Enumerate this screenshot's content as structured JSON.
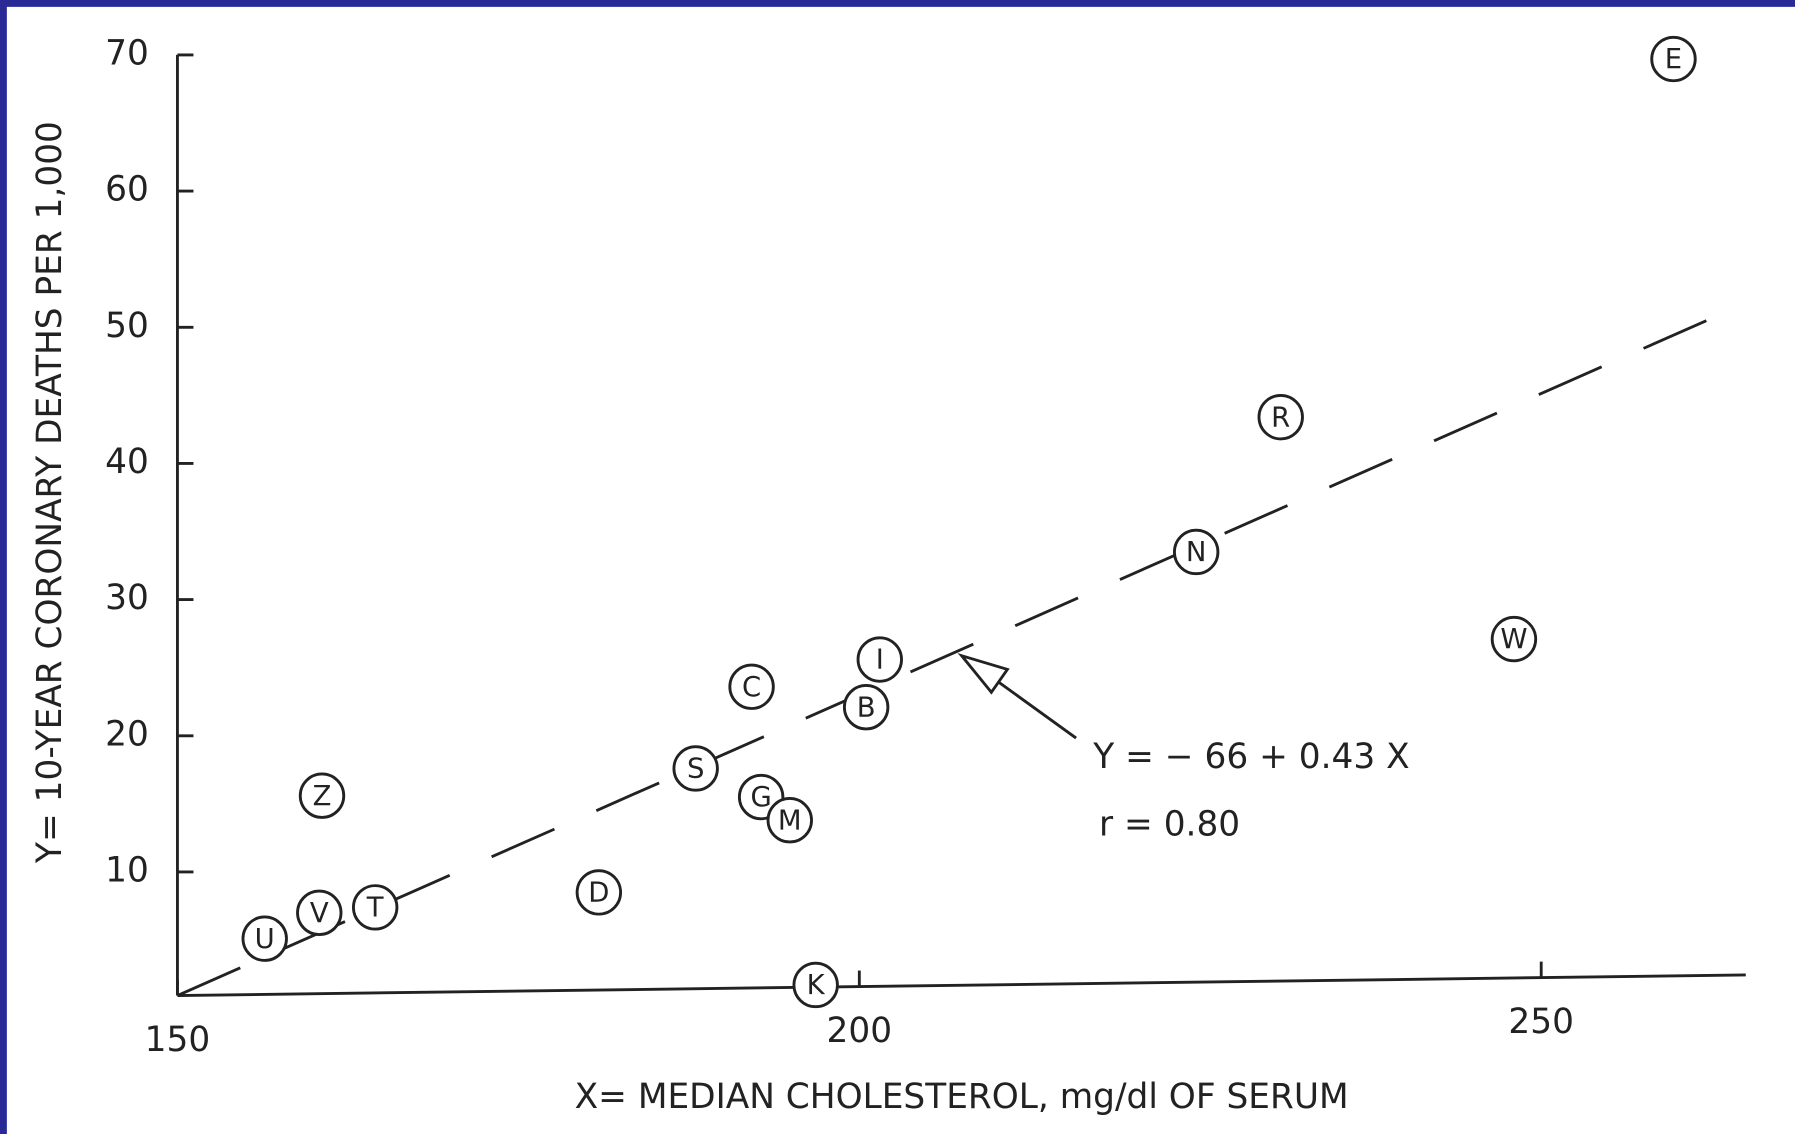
{
  "chart_data": {
    "type": "scatter",
    "x_label": "X= MEDIAN CHOLESTEROL, mg/dl OF SERUM",
    "y_label": "Y= 10-YEAR CORONARY DEATHS PER 1,000",
    "annotations": [
      "Y = − 66 + 0.43 X",
      "r =   0.80"
    ],
    "point_labels": [
      "E",
      "R",
      "N",
      "W",
      "I",
      "B",
      "C",
      "S",
      "G",
      "M",
      "Z",
      "D",
      "T",
      "V",
      "U",
      "K"
    ],
    "x": [
      259.7,
      230.9,
      224.7,
      248,
      201.5,
      200.5,
      192.1,
      188,
      192.8,
      194.9,
      160.6,
      180.9,
      164.5,
      160.4,
      156.4,
      196.8
    ],
    "values": [
      69.7,
      43.4,
      33.5,
      27.1,
      25.6,
      22.1,
      23.6,
      17.6,
      15.5,
      13.8,
      15.6,
      8.5,
      7.4,
      7.0,
      5.1,
      1.7
    ],
    "color": "#222222",
    "xlim": [
      150,
      265
    ],
    "xticks": [
      150,
      200,
      250
    ],
    "ylim": [
      0,
      70
    ],
    "yticks": [
      10,
      20,
      30,
      40,
      50,
      60,
      70
    ],
    "grid": false
  }
}
